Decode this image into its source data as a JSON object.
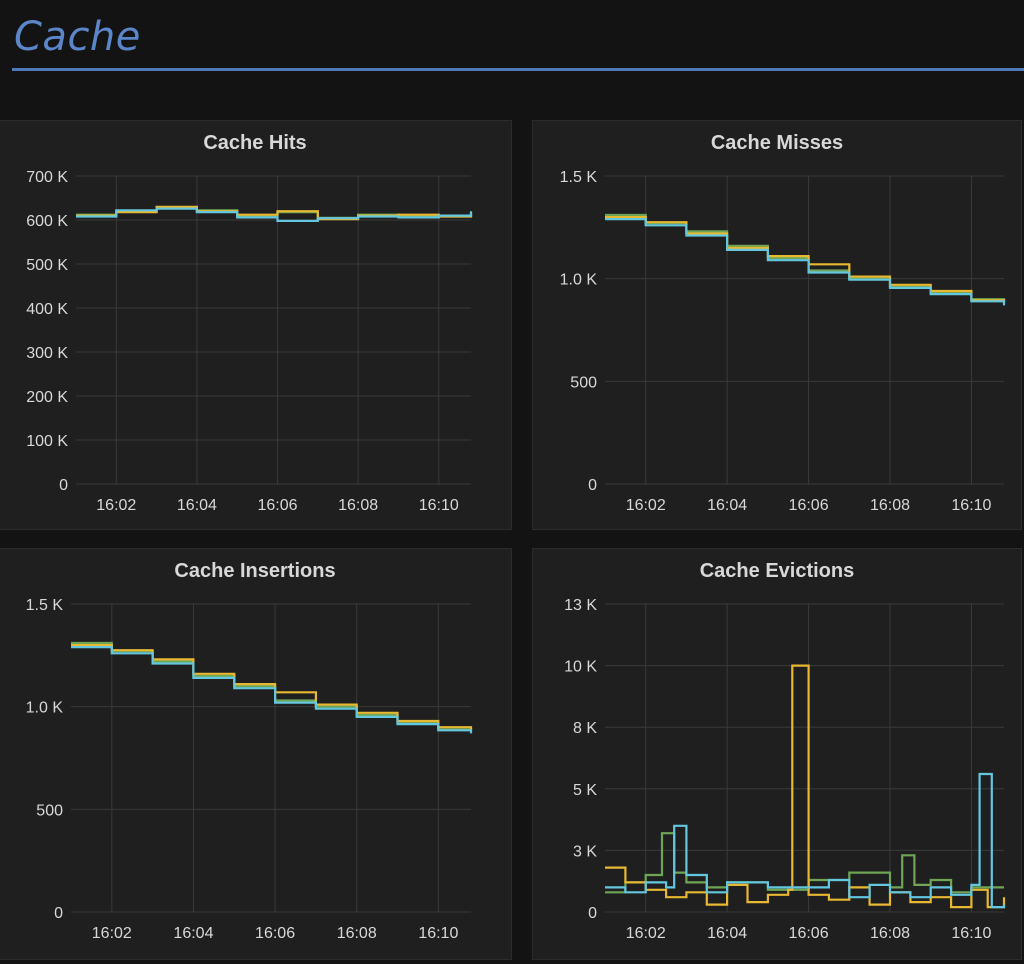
{
  "row": {
    "title": "Cache"
  },
  "colors": {
    "green": "#6fa655",
    "yellow": "#e8b833",
    "cyan": "#63c7e0",
    "accent": "#5b86c9",
    "panel_bg": "#1f1f1f",
    "page_bg": "#131313"
  },
  "panels": [
    {
      "title": "Cache Hits",
      "chart_data": {
        "type": "line",
        "title": "Cache Hits",
        "x_range": [
          "16:01",
          "16:10.8"
        ],
        "x_ticks": [
          "16:02",
          "16:04",
          "16:06",
          "16:08",
          "16:10"
        ],
        "ylim": [
          0,
          700000
        ],
        "y_ticks": [
          {
            "v": 0,
            "label": "0"
          },
          {
            "v": 100000,
            "label": "100 K"
          },
          {
            "v": 200000,
            "label": "200 K"
          },
          {
            "v": 300000,
            "label": "300 K"
          },
          {
            "v": 400000,
            "label": "400 K"
          },
          {
            "v": 500000,
            "label": "500 K"
          },
          {
            "v": 600000,
            "label": "600 K"
          },
          {
            "v": 700000,
            "label": "700 K"
          }
        ],
        "grid": true,
        "series": [
          {
            "color": "green",
            "x": [
              "16:01",
              "16:02",
              "16:03",
              "16:04",
              "16:05",
              "16:06",
              "16:07",
              "16:08",
              "16:09",
              "16:10",
              "16:10.8"
            ],
            "y": [
              612000,
              620000,
              628000,
              622000,
              610000,
              618000,
              605000,
              612000,
              608000,
              610000,
              615000
            ]
          },
          {
            "color": "yellow",
            "x": [
              "16:01",
              "16:02",
              "16:03",
              "16:04",
              "16:05",
              "16:06",
              "16:07",
              "16:08",
              "16:09",
              "16:10",
              "16:10.8"
            ],
            "y": [
              610000,
              618000,
              630000,
              620000,
              612000,
              620000,
              602000,
              610000,
              612000,
              608000,
              618000
            ]
          },
          {
            "color": "cyan",
            "x": [
              "16:01",
              "16:02",
              "16:03",
              "16:04",
              "16:05",
              "16:06",
              "16:07",
              "16:08",
              "16:09",
              "16:10",
              "16:10.8"
            ],
            "y": [
              608000,
              622000,
              626000,
              618000,
              606000,
              598000,
              604000,
              608000,
              606000,
              610000,
              620000
            ]
          }
        ]
      }
    },
    {
      "title": "Cache Misses",
      "chart_data": {
        "type": "line",
        "title": "Cache Misses",
        "x_range": [
          "16:01",
          "16:10.8"
        ],
        "x_ticks": [
          "16:02",
          "16:04",
          "16:06",
          "16:08",
          "16:10"
        ],
        "ylim": [
          0,
          1500
        ],
        "y_ticks": [
          {
            "v": 0,
            "label": "0"
          },
          {
            "v": 500,
            "label": "500"
          },
          {
            "v": 1000,
            "label": "1.0 K"
          },
          {
            "v": 1500,
            "label": "1.5 K"
          }
        ],
        "grid": true,
        "series": [
          {
            "color": "green",
            "x": [
              "16:01",
              "16:02",
              "16:03",
              "16:04",
              "16:05",
              "16:06",
              "16:07",
              "16:08",
              "16:09",
              "16:10",
              "16:10.8"
            ],
            "y": [
              1310,
              1270,
              1230,
              1160,
              1100,
              1040,
              1000,
              960,
              930,
              900,
              880
            ]
          },
          {
            "color": "yellow",
            "x": [
              "16:01",
              "16:02",
              "16:03",
              "16:04",
              "16:05",
              "16:06",
              "16:07",
              "16:08",
              "16:09",
              "16:10",
              "16:10.8"
            ],
            "y": [
              1300,
              1275,
              1220,
              1150,
              1110,
              1070,
              1010,
              970,
              940,
              895,
              885
            ]
          },
          {
            "color": "cyan",
            "x": [
              "16:01",
              "16:02",
              "16:03",
              "16:04",
              "16:05",
              "16:06",
              "16:07",
              "16:08",
              "16:09",
              "16:10",
              "16:10.8"
            ],
            "y": [
              1290,
              1260,
              1210,
              1140,
              1090,
              1030,
              995,
              955,
              925,
              890,
              870
            ]
          }
        ]
      }
    },
    {
      "title": "Cache Insertions",
      "chart_data": {
        "type": "line",
        "title": "Cache Insertions",
        "x_range": [
          "16:01",
          "16:10.8"
        ],
        "x_ticks": [
          "16:02",
          "16:04",
          "16:06",
          "16:08",
          "16:10"
        ],
        "ylim": [
          0,
          1500
        ],
        "y_ticks": [
          {
            "v": 0,
            "label": "0"
          },
          {
            "v": 500,
            "label": "500"
          },
          {
            "v": 1000,
            "label": "1.0 K"
          },
          {
            "v": 1500,
            "label": "1.5 K"
          }
        ],
        "grid": true,
        "series": [
          {
            "color": "green",
            "x": [
              "16:01",
              "16:02",
              "16:03",
              "16:04",
              "16:05",
              "16:06",
              "16:07",
              "16:08",
              "16:09",
              "16:10",
              "16:10.8"
            ],
            "y": [
              1310,
              1270,
              1220,
              1150,
              1100,
              1030,
              1000,
              960,
              920,
              890,
              880
            ]
          },
          {
            "color": "yellow",
            "x": [
              "16:01",
              "16:02",
              "16:03",
              "16:04",
              "16:05",
              "16:06",
              "16:07",
              "16:08",
              "16:09",
              "16:10",
              "16:10.8"
            ],
            "y": [
              1300,
              1275,
              1230,
              1160,
              1110,
              1070,
              1010,
              970,
              930,
              900,
              885
            ]
          },
          {
            "color": "cyan",
            "x": [
              "16:01",
              "16:02",
              "16:03",
              "16:04",
              "16:05",
              "16:06",
              "16:07",
              "16:08",
              "16:09",
              "16:10",
              "16:10.8"
            ],
            "y": [
              1290,
              1260,
              1210,
              1140,
              1090,
              1020,
              990,
              950,
              915,
              885,
              870
            ]
          }
        ]
      }
    },
    {
      "title": "Cache Evictions",
      "chart_data": {
        "type": "line",
        "title": "Cache Evictions",
        "x_range": [
          "16:01",
          "16:10.8"
        ],
        "x_ticks": [
          "16:02",
          "16:04",
          "16:06",
          "16:08",
          "16:10"
        ],
        "ylim": [
          0,
          12500
        ],
        "y_ticks": [
          {
            "v": 0,
            "label": "0"
          },
          {
            "v": 2500,
            "label": "3 K"
          },
          {
            "v": 5000,
            "label": "5 K"
          },
          {
            "v": 7500,
            "label": "8 K"
          },
          {
            "v": 10000,
            "label": "10 K"
          },
          {
            "v": 12500,
            "label": "13 K"
          }
        ],
        "grid": true,
        "series": [
          {
            "color": "green",
            "x": [
              "16:01",
              "16:01.5",
              "16:02",
              "16:02.4",
              "16:02.7",
              "16:03",
              "16:03.5",
              "16:04",
              "16:05",
              "16:06",
              "16:07",
              "16:08",
              "16:08.3",
              "16:08.6",
              "16:09",
              "16:09.5",
              "16:10",
              "16:10.8"
            ],
            "y": [
              800,
              1200,
              1500,
              3200,
              1600,
              1200,
              1000,
              1200,
              900,
              1300,
              1600,
              1000,
              2300,
              1100,
              1300,
              800,
              1000,
              1000
            ]
          },
          {
            "color": "yellow",
            "x": [
              "16:01",
              "16:01.5",
              "16:02",
              "16:02.5",
              "16:03",
              "16:03.5",
              "16:04",
              "16:04.5",
              "16:05",
              "16:05.5",
              "16:05.6",
              "16:05.9",
              "16:06",
              "16:06.5",
              "16:07",
              "16:07.5",
              "16:08",
              "16:08.5",
              "16:09",
              "16:09.5",
              "16:10",
              "16:10.4",
              "16:10.8"
            ],
            "y": [
              1800,
              1200,
              900,
              600,
              800,
              300,
              1100,
              400,
              700,
              900,
              10000,
              10000,
              700,
              500,
              1000,
              300,
              800,
              400,
              600,
              200,
              900,
              200,
              600
            ]
          },
          {
            "color": "cyan",
            "x": [
              "16:01",
              "16:01.5",
              "16:02",
              "16:02.5",
              "16:02.7",
              "16:03",
              "16:03.5",
              "16:04",
              "16:05",
              "16:06",
              "16:06.5",
              "16:07",
              "16:07.5",
              "16:08",
              "16:08.5",
              "16:09",
              "16:09.5",
              "16:10",
              "16:10.2",
              "16:10.5",
              "16:10.8"
            ],
            "y": [
              1000,
              800,
              1200,
              1000,
              3500,
              1500,
              800,
              1200,
              1000,
              1000,
              1300,
              600,
              1100,
              800,
              600,
              1000,
              700,
              1100,
              5600,
              200,
              300
            ]
          }
        ]
      }
    }
  ]
}
